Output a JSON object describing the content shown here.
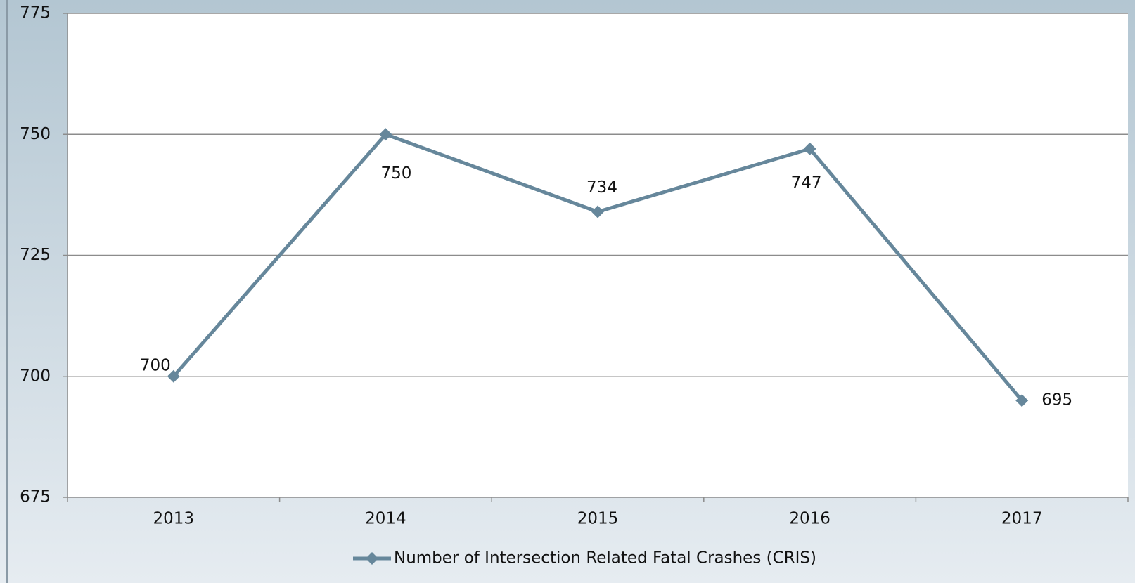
{
  "chart_data": {
    "type": "line",
    "categories": [
      "2013",
      "2014",
      "2015",
      "2016",
      "2017"
    ],
    "series": [
      {
        "name": "Number of Intersection Related Fatal Crashes (CRIS)",
        "color": "#66879b",
        "values": [
          700,
          750,
          734,
          747,
          695
        ]
      }
    ],
    "ylim": [
      675,
      775
    ],
    "yticks": [
      675,
      700,
      725,
      750,
      775
    ],
    "grid": true,
    "legend": "bottom"
  }
}
